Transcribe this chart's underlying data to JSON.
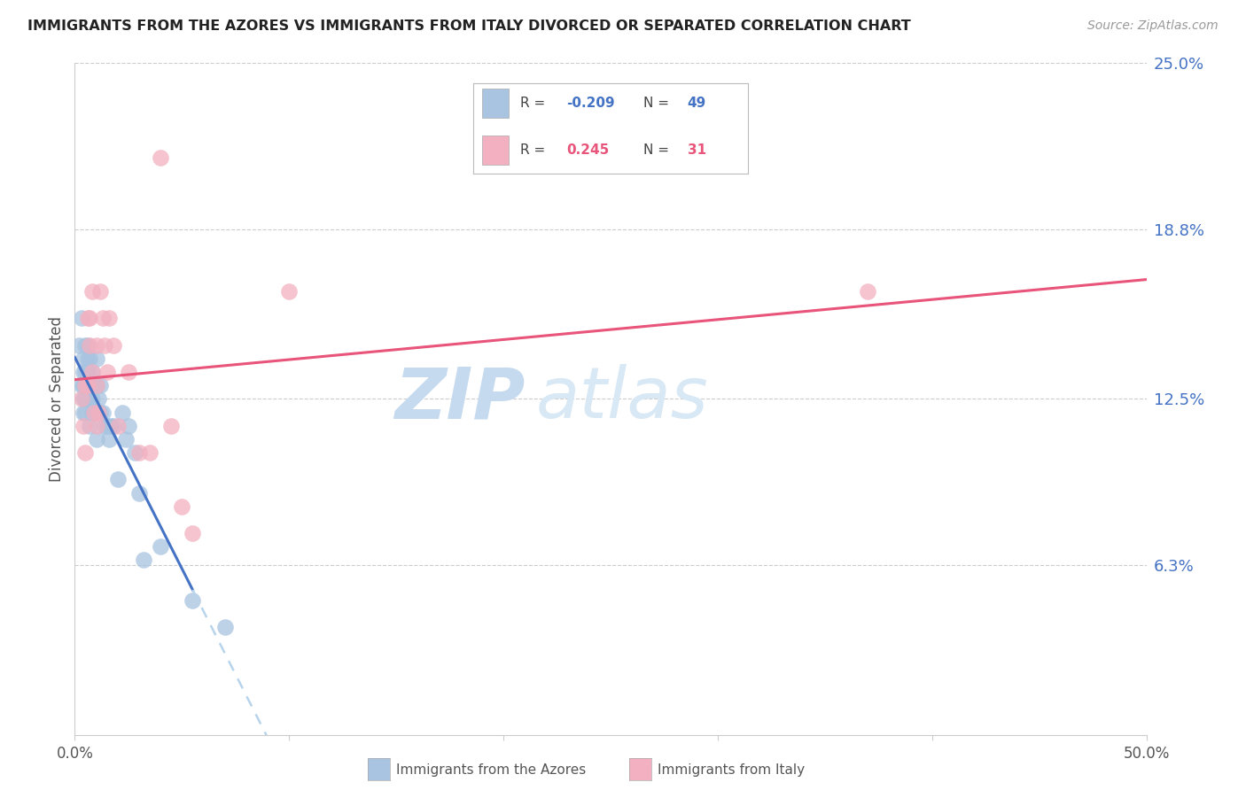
{
  "title": "IMMIGRANTS FROM THE AZORES VS IMMIGRANTS FROM ITALY DIVORCED OR SEPARATED CORRELATION CHART",
  "source": "Source: ZipAtlas.com",
  "ylabel": "Divorced or Separated",
  "xlim": [
    0.0,
    0.5
  ],
  "ylim": [
    0.0,
    0.25
  ],
  "ytick_labels_right": [
    "6.3%",
    "12.5%",
    "18.8%",
    "25.0%"
  ],
  "ytick_values_right": [
    0.063,
    0.125,
    0.188,
    0.25
  ],
  "legend_R_azores": "-0.209",
  "legend_N_azores": "49",
  "legend_R_italy": "0.245",
  "legend_N_italy": "31",
  "azores_color": "#a8c4e0",
  "italy_color": "#f2b0c0",
  "azores_line_color": "#4472c4",
  "italy_line_color": "#e8547a",
  "dashed_line_color": "#b8d4ec",
  "watermark": "ZIPatlas",
  "watermark_color": "#dce8f5",
  "background_color": "#ffffff",
  "grid_color": "#cccccc",
  "azores_x": [
    0.002,
    0.003,
    0.003,
    0.004,
    0.004,
    0.004,
    0.004,
    0.004,
    0.005,
    0.005,
    0.005,
    0.005,
    0.005,
    0.006,
    0.006,
    0.006,
    0.006,
    0.007,
    0.007,
    0.007,
    0.007,
    0.008,
    0.008,
    0.008,
    0.009,
    0.009,
    0.01,
    0.01,
    0.01,
    0.01,
    0.011,
    0.012,
    0.012,
    0.013,
    0.014,
    0.015,
    0.016,
    0.017,
    0.018,
    0.02,
    0.022,
    0.024,
    0.025,
    0.028,
    0.03,
    0.032,
    0.04,
    0.055,
    0.07
  ],
  "azores_y": [
    0.145,
    0.155,
    0.13,
    0.14,
    0.135,
    0.13,
    0.125,
    0.12,
    0.145,
    0.135,
    0.13,
    0.125,
    0.12,
    0.145,
    0.14,
    0.135,
    0.125,
    0.14,
    0.13,
    0.125,
    0.115,
    0.135,
    0.125,
    0.12,
    0.13,
    0.12,
    0.14,
    0.13,
    0.12,
    0.11,
    0.125,
    0.13,
    0.12,
    0.12,
    0.115,
    0.115,
    0.11,
    0.115,
    0.115,
    0.095,
    0.12,
    0.11,
    0.115,
    0.105,
    0.09,
    0.065,
    0.07,
    0.05,
    0.04
  ],
  "italy_x": [
    0.003,
    0.004,
    0.005,
    0.005,
    0.006,
    0.006,
    0.007,
    0.007,
    0.008,
    0.008,
    0.009,
    0.01,
    0.01,
    0.01,
    0.011,
    0.012,
    0.013,
    0.014,
    0.015,
    0.016,
    0.018,
    0.02,
    0.025,
    0.03,
    0.035,
    0.04,
    0.045,
    0.05,
    0.055,
    0.37,
    0.1
  ],
  "italy_y": [
    0.125,
    0.115,
    0.13,
    0.105,
    0.155,
    0.13,
    0.155,
    0.145,
    0.165,
    0.135,
    0.12,
    0.145,
    0.13,
    0.115,
    0.12,
    0.165,
    0.155,
    0.145,
    0.135,
    0.155,
    0.145,
    0.115,
    0.135,
    0.105,
    0.105,
    0.215,
    0.115,
    0.085,
    0.075,
    0.165,
    0.165
  ],
  "solid_line_end_azores": 0.055,
  "italy_line_intercept": 0.108,
  "italy_line_slope": 0.162,
  "azores_line_intercept": 0.13,
  "azores_line_slope": -0.55
}
